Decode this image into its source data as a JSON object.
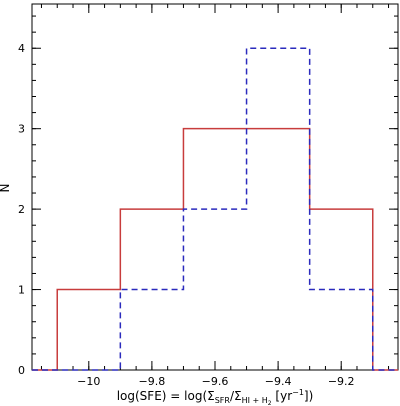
{
  "chart_data": {
    "type": "step-histogram",
    "xlabel": {
      "prefix": "log(SFE) = log(Σ",
      "sub1": "SFR",
      "mid": "/Σ",
      "sub2": "HI + H",
      "sub2sub": "2",
      "suffix": " [yr",
      "sup": "−1",
      "end": "])"
    },
    "ylabel": "N",
    "xlim": [
      -10.18,
      -9.02
    ],
    "ylim": [
      0,
      4.55
    ],
    "xticks": {
      "major": [
        -10.0,
        -9.8,
        -9.6,
        -9.4,
        -9.2
      ],
      "labels": [
        "−10",
        "−9.8",
        "−9.6",
        "−9.4",
        "−9.2"
      ],
      "minor_step": 0.05
    },
    "yticks": {
      "major": [
        0,
        1,
        2,
        3,
        4
      ],
      "labels": [
        "0",
        "1",
        "2",
        "3",
        "4"
      ],
      "minor_step": 0.2
    },
    "bin_edges": [
      -10.1,
      -9.9,
      -9.7,
      -9.5,
      -9.3,
      -9.1
    ],
    "series": [
      {
        "style": "solid",
        "color": "#c83c3c",
        "counts": [
          1,
          2,
          3,
          3,
          2
        ]
      },
      {
        "style": "dashed",
        "color": "#2b2bbd",
        "counts": [
          0,
          1,
          2,
          4,
          1
        ]
      }
    ]
  }
}
